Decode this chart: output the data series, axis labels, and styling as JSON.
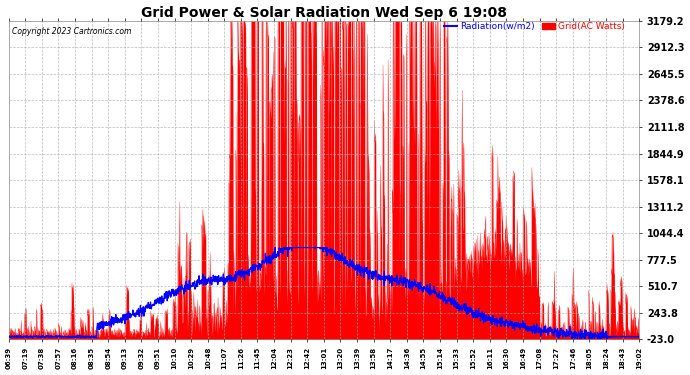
{
  "title": "Grid Power & Solar Radiation Wed Sep 6 19:08",
  "copyright_text": "Copyright 2023 Cartronics.com",
  "legend_radiation": "Radiation(w/m2)",
  "legend_grid": "Grid(AC Watts)",
  "radiation_color": "blue",
  "grid_color": "red",
  "background_color": "#ffffff",
  "plot_bg_color": "#ffffff",
  "title_color": "black",
  "copyright_color": "black",
  "yticks": [
    -23.0,
    243.8,
    510.7,
    777.5,
    1044.4,
    1311.2,
    1578.1,
    1844.9,
    2111.8,
    2378.6,
    2645.5,
    2912.3,
    3179.2
  ],
  "ylim": [
    -23.0,
    3179.2
  ],
  "x_labels": [
    "06:39",
    "07:19",
    "07:38",
    "07:57",
    "08:16",
    "08:35",
    "08:54",
    "09:13",
    "09:32",
    "09:51",
    "10:10",
    "10:29",
    "10:48",
    "11:07",
    "11:26",
    "11:45",
    "12:04",
    "12:23",
    "12:42",
    "13:01",
    "13:20",
    "13:39",
    "13:58",
    "14:17",
    "14:36",
    "14:55",
    "15:14",
    "15:33",
    "15:52",
    "16:11",
    "16:30",
    "16:49",
    "17:08",
    "17:27",
    "17:46",
    "18:05",
    "18:24",
    "18:43",
    "19:02"
  ],
  "n_points": 2000,
  "figsize": [
    6.9,
    3.75
  ],
  "dpi": 100
}
